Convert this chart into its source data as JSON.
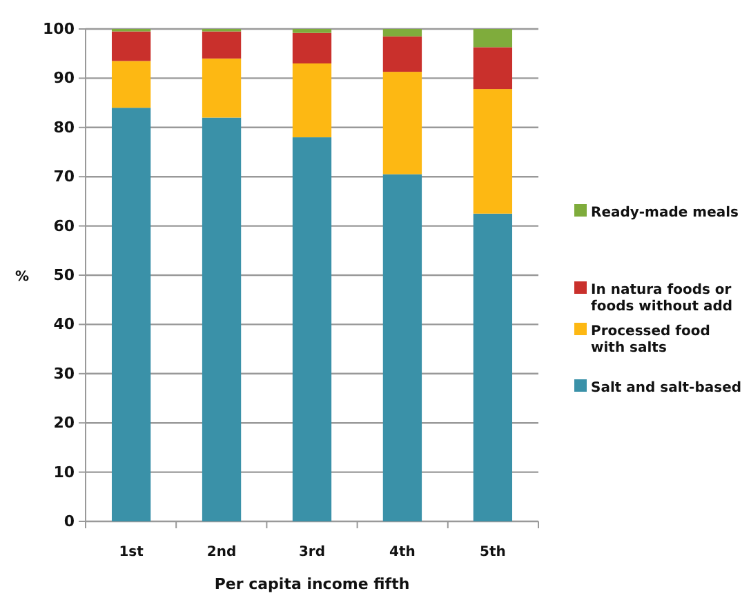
{
  "chart_data": {
    "type": "bar",
    "stacked": true,
    "xlabel": "Per capita income fifth",
    "ylabel": "%",
    "categories": [
      "1st",
      "2nd",
      "3rd",
      "4th",
      "5th"
    ],
    "series": [
      {
        "name": "Salt and salt-based",
        "color": "#3a91a8",
        "values": [
          84,
          82,
          78,
          70.5,
          62.5
        ]
      },
      {
        "name": "Processed food with salts",
        "color": "#fdb813",
        "values": [
          9.5,
          12,
          15,
          20.8,
          25.3
        ]
      },
      {
        "name": "In natura foods or foods without add",
        "color": "#c9302c",
        "values": [
          6,
          5.5,
          6.2,
          7.2,
          8.5
        ]
      },
      {
        "name": "Ready-made meals",
        "color": "#7fac3c",
        "values": [
          0.5,
          0.5,
          0.8,
          1.5,
          3.7
        ]
      }
    ],
    "ylim": [
      0,
      100
    ],
    "yticks": [
      0,
      10,
      20,
      30,
      40,
      50,
      60,
      70,
      80,
      90,
      100
    ],
    "grid": "y",
    "legend": "right"
  }
}
